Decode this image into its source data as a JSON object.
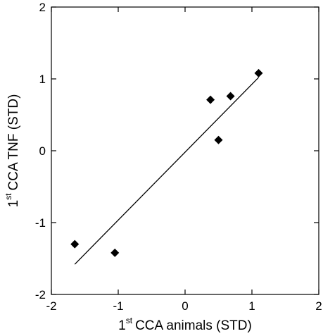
{
  "chart_data": {
    "type": "scatter",
    "xlabel": {
      "prefix": "1",
      "sup": "st",
      "text": "CCA animals (STD)"
    },
    "ylabel": {
      "prefix": "1",
      "sup": "st",
      "text": "CCA TNF (STD)"
    },
    "xlim": [
      -2,
      2
    ],
    "ylim": [
      -2,
      2
    ],
    "xticks": [
      -2,
      -1,
      0,
      1,
      2
    ],
    "yticks": [
      -2,
      -1,
      0,
      1,
      2
    ],
    "xticklabels": [
      "-2",
      "-1",
      "0",
      "1",
      "2"
    ],
    "yticklabels": [
      "-2",
      "-1",
      "0",
      "1",
      "2"
    ],
    "points": [
      {
        "x": -1.65,
        "y": -1.3
      },
      {
        "x": -1.05,
        "y": -1.42
      },
      {
        "x": 0.38,
        "y": 0.71
      },
      {
        "x": 0.5,
        "y": 0.15
      },
      {
        "x": 0.68,
        "y": 0.76
      },
      {
        "x": 1.1,
        "y": 1.08
      }
    ],
    "fit_line": {
      "x": [
        -1.65,
        1.1
      ],
      "y": [
        -1.58,
        1.02
      ]
    },
    "grid": false,
    "marker": "diamond",
    "colors": {
      "marker": "#000000",
      "line": "#000000",
      "axes": "#000000"
    }
  }
}
